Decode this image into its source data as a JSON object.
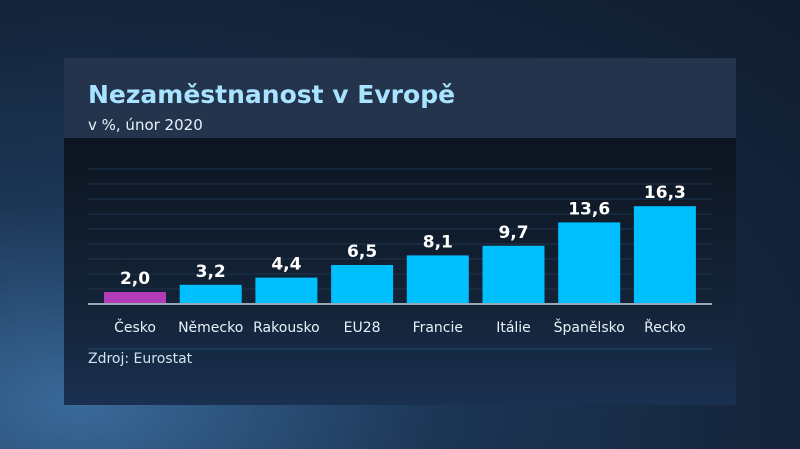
{
  "chart_data": {
    "type": "bar",
    "title": "Nezaměstnanost v Evropě",
    "subtitle": "v %, únor 2020",
    "categories": [
      "Česko",
      "Německo",
      "Rakousko",
      "EU28",
      "Francie",
      "Itálie",
      "Španělsko",
      "Řecko"
    ],
    "values": [
      2.0,
      3.2,
      4.4,
      6.5,
      8.1,
      9.7,
      13.6,
      16.3
    ],
    "value_labels": [
      "2,0",
      "3,2",
      "4,4",
      "6,5",
      "8,1",
      "9,7",
      "13,6",
      "16,3"
    ],
    "highlight_category": "Česko",
    "colors": {
      "default": "#00bfff",
      "highlight": "#b23cb8",
      "title": "#a8e4ff"
    },
    "ylim": [
      0,
      18
    ],
    "grid": true,
    "source": "Zdroj: Eurostat"
  }
}
